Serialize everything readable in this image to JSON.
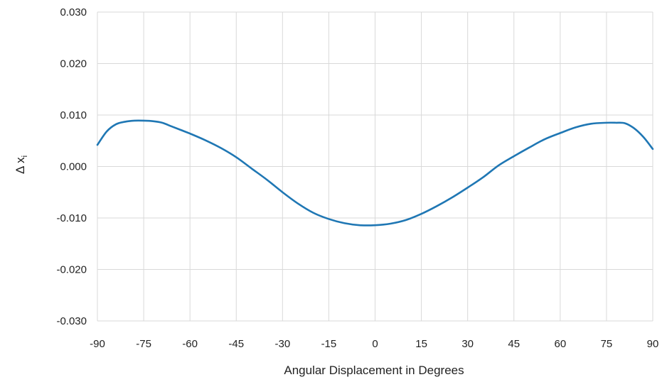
{
  "chart_data": {
    "type": "line",
    "xlabel": "Angular Displacement in Degrees",
    "ylabel": "Δ x",
    "ylabel_subscript": "i",
    "xlim": [
      -90,
      90
    ],
    "ylim": [
      -0.03,
      0.03
    ],
    "x_ticks": [
      "-90",
      "-75",
      "-60",
      "-45",
      "-30",
      "-15",
      "0",
      "15",
      "30",
      "45",
      "60",
      "75",
      "90"
    ],
    "y_ticks": [
      "0.030",
      "0.020",
      "0.010",
      "0.000",
      "-0.010",
      "-0.020",
      "-0.030"
    ],
    "grid": true,
    "series": [
      {
        "color": "#1f77b4",
        "x": [
          -90,
          -87,
          -84,
          -81,
          -78,
          -75,
          -72,
          -69,
          -66,
          -63,
          -60,
          -55,
          -50,
          -45,
          -40,
          -35,
          -30,
          -25,
          -20,
          -15,
          -10,
          -5,
          0,
          5,
          10,
          15,
          20,
          25,
          30,
          35,
          40,
          45,
          50,
          55,
          60,
          65,
          70,
          75,
          78,
          81,
          84,
          87,
          90
        ],
        "y": [
          0.0042,
          0.0068,
          0.0082,
          0.0087,
          0.0089,
          0.0089,
          0.0088,
          0.0085,
          0.0078,
          0.0071,
          0.0064,
          0.0051,
          0.0036,
          0.0018,
          -0.0004,
          -0.0026,
          -0.005,
          -0.0072,
          -0.009,
          -0.0102,
          -0.011,
          -0.0114,
          -0.0114,
          -0.0111,
          -0.0104,
          -0.0092,
          -0.0077,
          -0.006,
          -0.0041,
          -0.0021,
          0.0002,
          0.002,
          0.0037,
          0.0053,
          0.0065,
          0.0076,
          0.0083,
          0.0085,
          0.0085,
          0.0084,
          0.0074,
          0.0057,
          0.0034
        ]
      }
    ]
  }
}
